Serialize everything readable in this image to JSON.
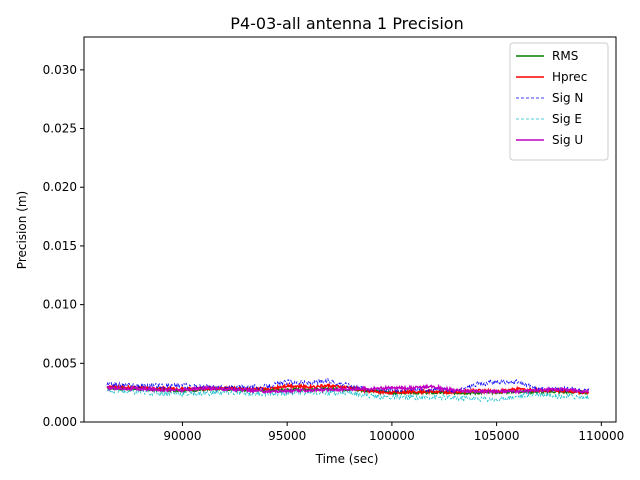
{
  "chart_data": {
    "type": "line",
    "title": "P4-03-all antenna 1 Precision",
    "xlabel": "Time (sec)",
    "ylabel": "Precision (m)",
    "xlim": [
      85300,
      110700
    ],
    "ylim": [
      0.0,
      0.0328
    ],
    "xticks": [
      90000,
      95000,
      100000,
      105000,
      110000
    ],
    "xtick_labels": [
      "90000",
      "95000",
      "100000",
      "105000",
      "110000"
    ],
    "yticks": [
      0.0,
      0.005,
      0.01,
      0.015,
      0.02,
      0.025,
      0.03
    ],
    "ytick_labels": [
      "0.000",
      "0.005",
      "0.010",
      "0.015",
      "0.020",
      "0.025",
      "0.030"
    ],
    "legend_position": "top-right",
    "series": [
      {
        "name": "RMS",
        "color": "#008000",
        "style": "solid",
        "width": 1.5,
        "x": [
          86400,
          88000,
          90000,
          92000,
          94000,
          96000,
          98000,
          100000,
          102000,
          104000,
          106000,
          108000,
          109400
        ],
        "y": [
          0.0029,
          0.0028,
          0.0027,
          0.0028,
          0.0027,
          0.0028,
          0.0028,
          0.0025,
          0.0025,
          0.0025,
          0.0026,
          0.0026,
          0.0025
        ]
      },
      {
        "name": "Hprec",
        "color": "#ff0000",
        "style": "solid",
        "width": 1.5,
        "x": [
          86400,
          88000,
          90000,
          92000,
          94000,
          95000,
          96000,
          97000,
          98000,
          99000,
          100000,
          101000,
          102000,
          103000,
          104000,
          105000,
          106000,
          107000,
          108000,
          109400
        ],
        "y": [
          0.003,
          0.0029,
          0.0028,
          0.0029,
          0.0028,
          0.0031,
          0.003,
          0.0031,
          0.0029,
          0.0026,
          0.0025,
          0.0026,
          0.0026,
          0.0025,
          0.0027,
          0.0026,
          0.0028,
          0.0027,
          0.0027,
          0.0025
        ]
      },
      {
        "name": "Sig N",
        "color": "#0000ff",
        "style": "dashed",
        "width": 0.8,
        "x": [
          86400,
          88000,
          90000,
          92000,
          94000,
          95000,
          96000,
          97000,
          98000,
          99000,
          100000,
          101000,
          102000,
          103000,
          104000,
          105000,
          106000,
          107000,
          108000,
          109400
        ],
        "y": [
          0.0032,
          0.0031,
          0.0031,
          0.0029,
          0.003,
          0.0034,
          0.0033,
          0.0035,
          0.0031,
          0.0028,
          0.0028,
          0.0028,
          0.0028,
          0.0026,
          0.0032,
          0.0034,
          0.0034,
          0.0028,
          0.0028,
          0.0027
        ]
      },
      {
        "name": "Sig E",
        "color": "#17becf",
        "style": "dashed",
        "width": 0.8,
        "x": [
          86400,
          88000,
          90000,
          92000,
          94000,
          96000,
          98000,
          99000,
          100000,
          102000,
          104000,
          105000,
          106000,
          107000,
          108000,
          109400
        ],
        "y": [
          0.0027,
          0.0025,
          0.0024,
          0.0025,
          0.0024,
          0.0025,
          0.0025,
          0.0022,
          0.0021,
          0.0021,
          0.002,
          0.0019,
          0.0022,
          0.0024,
          0.0022,
          0.0021
        ]
      },
      {
        "name": "Sig U",
        "color": "#bf00bf",
        "style": "solid",
        "width": 1.5,
        "x": [
          86400,
          88000,
          90000,
          91000,
          92000,
          94000,
          96000,
          98000,
          100000,
          101000,
          102000,
          103000,
          104000,
          106000,
          108000,
          109400
        ],
        "y": [
          0.0029,
          0.0028,
          0.0027,
          0.0029,
          0.0028,
          0.0026,
          0.0027,
          0.0028,
          0.0029,
          0.0029,
          0.003,
          0.0027,
          0.0026,
          0.0026,
          0.0028,
          0.0026
        ]
      }
    ]
  }
}
